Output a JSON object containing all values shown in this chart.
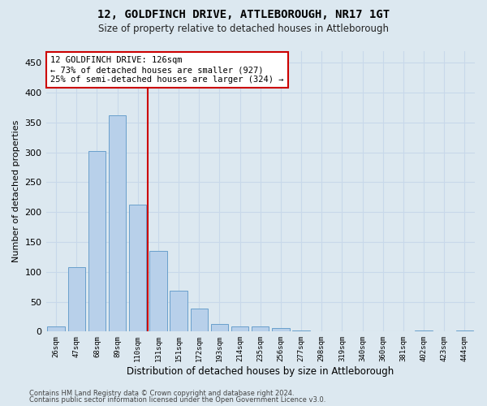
{
  "title": "12, GOLDFINCH DRIVE, ATTLEBOROUGH, NR17 1GT",
  "subtitle": "Size of property relative to detached houses in Attleborough",
  "xlabel": "Distribution of detached houses by size in Attleborough",
  "ylabel": "Number of detached properties",
  "footer1": "Contains HM Land Registry data © Crown copyright and database right 2024.",
  "footer2": "Contains public sector information licensed under the Open Government Licence v3.0.",
  "bar_color": "#b8d0ea",
  "bar_edge_color": "#6aa0cc",
  "grid_color": "#c8d8ea",
  "background_color": "#dce8f0",
  "vline_color": "#cc0000",
  "vline_x_index": 4.5,
  "annotation_line1": "12 GOLDFINCH DRIVE: 126sqm",
  "annotation_line2": "← 73% of detached houses are smaller (927)",
  "annotation_line3": "25% of semi-detached houses are larger (324) →",
  "annotation_box_edgecolor": "#cc0000",
  "categories": [
    "26sqm",
    "47sqm",
    "68sqm",
    "89sqm",
    "110sqm",
    "131sqm",
    "151sqm",
    "172sqm",
    "193sqm",
    "214sqm",
    "235sqm",
    "256sqm",
    "277sqm",
    "298sqm",
    "319sqm",
    "340sqm",
    "360sqm",
    "381sqm",
    "402sqm",
    "423sqm",
    "444sqm"
  ],
  "values": [
    8,
    108,
    302,
    362,
    212,
    135,
    69,
    38,
    13,
    9,
    9,
    6,
    2,
    1,
    0,
    0,
    0,
    0,
    2,
    0,
    2
  ],
  "ylim": [
    0,
    470
  ],
  "yticks": [
    0,
    50,
    100,
    150,
    200,
    250,
    300,
    350,
    400,
    450
  ]
}
